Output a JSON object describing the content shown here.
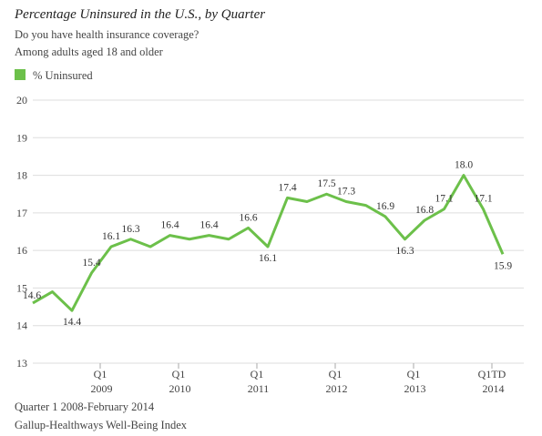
{
  "chart_data": {
    "type": "line",
    "title": "Percentage Uninsured in the U.S., by Quarter",
    "subtitle": "Do you have health insurance coverage?",
    "subtitle2": "Among adults aged 18 and older",
    "notes": [
      "Quarter 1 2008-February 2014",
      "Gallup-Healthways Well-Being Index"
    ],
    "categories": [
      null,
      null,
      null,
      null,
      "Q1 2009",
      null,
      null,
      null,
      "Q1 2010",
      null,
      null,
      null,
      "Q1 2011",
      null,
      null,
      null,
      "Q1 2012",
      null,
      null,
      null,
      "Q1 2013",
      null,
      null,
      null,
      "Q1TD 2014"
    ],
    "series": [
      {
        "name": "% Uninsured",
        "color": "#6cc04a",
        "values": [
          14.6,
          14.9,
          14.4,
          15.4,
          16.1,
          16.3,
          16.1,
          16.4,
          16.3,
          16.4,
          16.3,
          16.6,
          16.1,
          17.4,
          17.3,
          17.5,
          17.3,
          17.2,
          16.9,
          16.3,
          16.8,
          17.1,
          18.0,
          17.1,
          15.9
        ],
        "value_labels": [
          "14.6",
          null,
          "14.4",
          "15.4",
          "16.1",
          "16.3",
          null,
          "16.4",
          null,
          "16.4",
          null,
          "16.6",
          "16.1",
          "17.4",
          null,
          "17.5",
          "17.3",
          null,
          "16.9",
          "16.3",
          "16.8",
          "17.1",
          "18.0",
          "17.1",
          "15.9"
        ]
      }
    ],
    "ylim": [
      13,
      20
    ],
    "yticks": [
      13,
      14,
      15,
      16,
      17,
      18,
      19,
      20
    ],
    "grid": true
  }
}
